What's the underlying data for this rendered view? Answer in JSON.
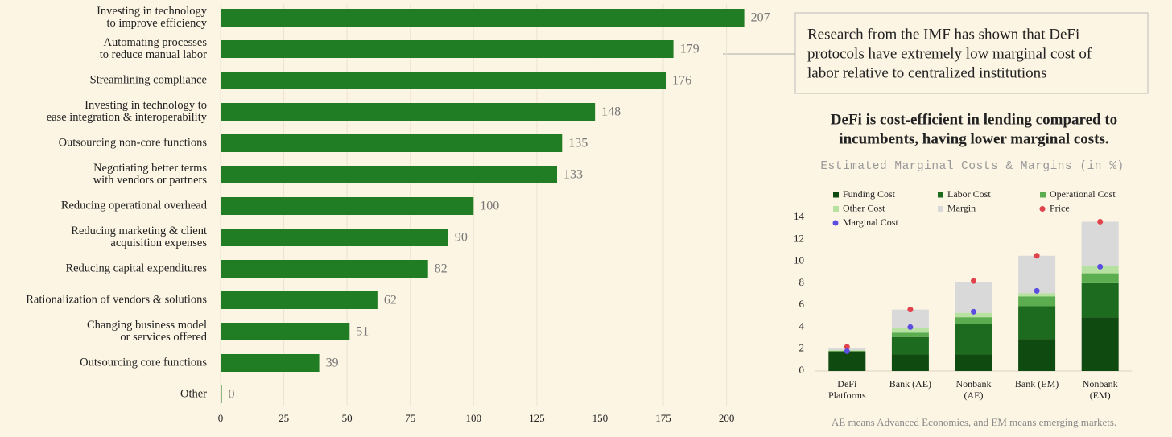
{
  "chart_data": [
    {
      "type": "hbar",
      "categories": [
        [
          "Investing in technology",
          "to improve efficiency"
        ],
        [
          "Automating processes",
          "to reduce manual labor"
        ],
        [
          "Streamlining compliance"
        ],
        [
          "Investing in technology to",
          "ease integration & interoperability"
        ],
        [
          "Outsourcing non-core functions"
        ],
        [
          "Negotiating better terms",
          "with vendors or partners"
        ],
        [
          "Reducing operational overhead"
        ],
        [
          "Reducing marketing & client",
          "acquisition expenses"
        ],
        [
          "Reducing capital expenditures"
        ],
        [
          "Rationalization of vendors & solutions"
        ],
        [
          "Changing business model",
          "or services offered"
        ],
        [
          "Outsourcing core functions"
        ],
        [
          "Other"
        ]
      ],
      "values": [
        207,
        179,
        176,
        148,
        135,
        133,
        100,
        90,
        82,
        62,
        51,
        39,
        0
      ],
      "color": "#217d24",
      "xlim": [
        0,
        210
      ],
      "xticks": [
        0,
        25,
        50,
        75,
        100,
        125,
        150,
        175,
        200
      ],
      "grid": true,
      "annotation": [
        "Research from the IMF has shown that DeFi",
        "protocols have extremely low marginal cost of",
        "labor relative to centralized institutions"
      ]
    },
    {
      "type": "stacked-bar",
      "title": [
        "DeFi is cost-efficient in lending compared to",
        "incumbents, having lower marginal costs."
      ],
      "subtitle": "Estimated Marginal Costs & Margins (in %)",
      "categories": [
        [
          "DeFi",
          "Platforms"
        ],
        [
          "Bank (AE)"
        ],
        [
          "Nonbank",
          "(AE)"
        ],
        [
          "Bank (EM)"
        ],
        [
          "Nonbank",
          "(EM)"
        ]
      ],
      "series": [
        {
          "name": "Funding Cost",
          "color": "#0f4a10",
          "values": [
            1.8,
            1.5,
            1.5,
            2.9,
            4.9
          ]
        },
        {
          "name": "Labor Cost",
          "color": "#1d6b1f",
          "values": [
            0,
            1.6,
            2.8,
            3.0,
            3.1
          ]
        },
        {
          "name": "Operational Cost",
          "color": "#5cad4f",
          "values": [
            0,
            0.4,
            0.6,
            0.9,
            0.9
          ]
        },
        {
          "name": "Other Cost",
          "color": "#b7e1a1",
          "values": [
            0.1,
            0.4,
            0.4,
            0.3,
            0.7
          ]
        },
        {
          "name": "Margin",
          "color": "#d9d9d9",
          "values": [
            0.2,
            1.7,
            2.8,
            3.4,
            4.0
          ]
        },
        {
          "name": "Price",
          "color": "#e0434b",
          "type": "dot",
          "values": [
            2.2,
            5.6,
            8.2,
            10.5,
            13.6
          ]
        },
        {
          "name": "Marginal Cost",
          "color": "#5a4de0",
          "type": "dot",
          "values": [
            1.8,
            4.0,
            5.4,
            7.3,
            9.5
          ]
        }
      ],
      "ylim": [
        0,
        14
      ],
      "yticks": [
        0,
        2,
        4,
        6,
        8,
        10,
        12,
        14
      ],
      "grid": false,
      "note": "AE means Advanced Economies, and EM means emerging markets."
    }
  ]
}
